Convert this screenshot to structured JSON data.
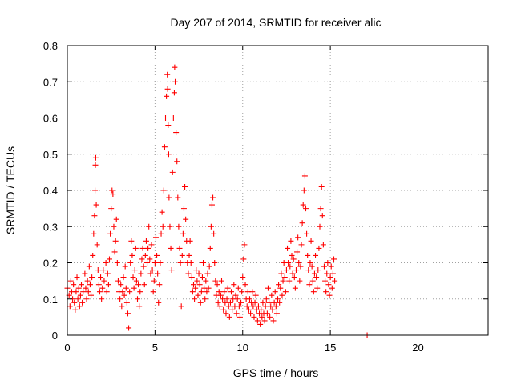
{
  "chart_data": {
    "type": "scatter",
    "title": "Day 207 of 2014, SRMTID for receiver alic",
    "xlabel": "GPS time / hours",
    "ylabel": "SRMTID / TECUs",
    "xlim": [
      0,
      24
    ],
    "ylim": [
      0,
      0.8
    ],
    "x_ticks": [
      0,
      5,
      10,
      15,
      20
    ],
    "y_ticks": [
      0,
      0.1,
      0.2,
      0.3,
      0.4,
      0.5,
      0.6,
      0.7,
      0.8
    ],
    "x_tick_labels": [
      "0",
      "5",
      "10",
      "15",
      "20"
    ],
    "y_tick_labels": [
      "0",
      "0.1",
      "0.2",
      "0.3",
      "0.4",
      "0.5",
      "0.6",
      "0.7",
      "0.8"
    ],
    "grid": true,
    "marker": "+",
    "color": "#ff0000",
    "series": [
      {
        "name": "SRMTID",
        "points": [
          [
            0.0,
            0.13
          ],
          [
            0.1,
            0.11
          ],
          [
            0.15,
            0.08
          ],
          [
            0.2,
            0.15
          ],
          [
            0.25,
            0.12
          ],
          [
            0.3,
            0.1
          ],
          [
            0.35,
            0.14
          ],
          [
            0.4,
            0.09
          ],
          [
            0.45,
            0.07
          ],
          [
            0.5,
            0.12
          ],
          [
            0.55,
            0.16
          ],
          [
            0.6,
            0.1
          ],
          [
            0.65,
            0.13
          ],
          [
            0.7,
            0.08
          ],
          [
            0.75,
            0.11
          ],
          [
            0.8,
            0.14
          ],
          [
            0.85,
            0.09
          ],
          [
            0.9,
            0.12
          ],
          [
            1.0,
            0.17
          ],
          [
            1.05,
            0.13
          ],
          [
            1.1,
            0.1
          ],
          [
            1.15,
            0.15
          ],
          [
            1.2,
            0.12
          ],
          [
            1.25,
            0.19
          ],
          [
            1.3,
            0.14
          ],
          [
            1.35,
            0.11
          ],
          [
            1.4,
            0.16
          ],
          [
            1.45,
            0.22
          ],
          [
            1.5,
            0.28
          ],
          [
            1.55,
            0.33
          ],
          [
            1.58,
            0.4
          ],
          [
            1.6,
            0.47
          ],
          [
            1.62,
            0.49
          ],
          [
            1.65,
            0.36
          ],
          [
            1.7,
            0.25
          ],
          [
            1.75,
            0.18
          ],
          [
            1.8,
            0.14
          ],
          [
            1.85,
            0.12
          ],
          [
            1.9,
            0.16
          ],
          [
            1.95,
            0.1
          ],
          [
            2.0,
            0.13
          ],
          [
            2.05,
            0.18
          ],
          [
            2.1,
            0.15
          ],
          [
            2.2,
            0.2
          ],
          [
            2.25,
            0.12
          ],
          [
            2.3,
            0.17
          ],
          [
            2.35,
            0.14
          ],
          [
            2.4,
            0.21
          ],
          [
            2.45,
            0.28
          ],
          [
            2.5,
            0.35
          ],
          [
            2.55,
            0.4
          ],
          [
            2.6,
            0.39
          ],
          [
            2.65,
            0.3
          ],
          [
            2.7,
            0.23
          ],
          [
            2.75,
            0.26
          ],
          [
            2.8,
            0.32
          ],
          [
            2.85,
            0.2
          ],
          [
            2.9,
            0.15
          ],
          [
            2.95,
            0.12
          ],
          [
            3.0,
            0.1
          ],
          [
            3.05,
            0.14
          ],
          [
            3.1,
            0.08
          ],
          [
            3.15,
            0.12
          ],
          [
            3.2,
            0.16
          ],
          [
            3.25,
            0.11
          ],
          [
            3.3,
            0.19
          ],
          [
            3.35,
            0.13
          ],
          [
            3.4,
            0.09
          ],
          [
            3.45,
            0.06
          ],
          [
            3.5,
            0.02
          ],
          [
            3.55,
            0.12
          ],
          [
            3.6,
            0.2
          ],
          [
            3.65,
            0.26
          ],
          [
            3.7,
            0.22
          ],
          [
            3.75,
            0.16
          ],
          [
            3.8,
            0.13
          ],
          [
            3.85,
            0.18
          ],
          [
            3.9,
            0.24
          ],
          [
            3.95,
            0.15
          ],
          [
            4.0,
            0.1
          ],
          [
            4.05,
            0.14
          ],
          [
            4.1,
            0.08
          ],
          [
            4.15,
            0.12
          ],
          [
            4.2,
            0.17
          ],
          [
            4.25,
            0.21
          ],
          [
            4.3,
            0.24
          ],
          [
            4.35,
            0.19
          ],
          [
            4.4,
            0.14
          ],
          [
            4.45,
            0.22
          ],
          [
            4.5,
            0.26
          ],
          [
            4.55,
            0.2
          ],
          [
            4.6,
            0.24
          ],
          [
            4.65,
            0.3
          ],
          [
            4.7,
            0.21
          ],
          [
            4.75,
            0.17
          ],
          [
            4.8,
            0.25
          ],
          [
            4.85,
            0.18
          ],
          [
            4.9,
            0.12
          ],
          [
            4.95,
            0.15
          ],
          [
            5.0,
            0.2
          ],
          [
            5.05,
            0.27
          ],
          [
            5.1,
            0.22
          ],
          [
            5.15,
            0.17
          ],
          [
            5.2,
            0.09
          ],
          [
            5.25,
            0.14
          ],
          [
            5.3,
            0.2
          ],
          [
            5.35,
            0.28
          ],
          [
            5.4,
            0.34
          ],
          [
            5.45,
            0.3
          ],
          [
            5.5,
            0.4
          ],
          [
            5.55,
            0.52
          ],
          [
            5.6,
            0.6
          ],
          [
            5.65,
            0.66
          ],
          [
            5.7,
            0.72
          ],
          [
            5.72,
            0.68
          ],
          [
            5.75,
            0.58
          ],
          [
            5.78,
            0.5
          ],
          [
            5.8,
            0.38
          ],
          [
            5.85,
            0.3
          ],
          [
            5.9,
            0.24
          ],
          [
            5.95,
            0.18
          ],
          [
            6.0,
            0.45
          ],
          [
            6.05,
            0.6
          ],
          [
            6.1,
            0.67
          ],
          [
            6.12,
            0.74
          ],
          [
            6.15,
            0.7
          ],
          [
            6.2,
            0.56
          ],
          [
            6.25,
            0.48
          ],
          [
            6.3,
            0.38
          ],
          [
            6.35,
            0.3
          ],
          [
            6.4,
            0.24
          ],
          [
            6.45,
            0.2
          ],
          [
            6.5,
            0.08
          ],
          [
            6.55,
            0.22
          ],
          [
            6.6,
            0.28
          ],
          [
            6.65,
            0.35
          ],
          [
            6.7,
            0.41
          ],
          [
            6.75,
            0.32
          ],
          [
            6.8,
            0.26
          ],
          [
            6.85,
            0.2
          ],
          [
            6.9,
            0.17
          ],
          [
            6.95,
            0.22
          ],
          [
            7.0,
            0.26
          ],
          [
            7.05,
            0.2
          ],
          [
            7.1,
            0.16
          ],
          [
            7.15,
            0.12
          ],
          [
            7.2,
            0.14
          ],
          [
            7.25,
            0.1
          ],
          [
            7.3,
            0.13
          ],
          [
            7.35,
            0.18
          ],
          [
            7.4,
            0.15
          ],
          [
            7.45,
            0.11
          ],
          [
            7.5,
            0.17
          ],
          [
            7.55,
            0.14
          ],
          [
            7.6,
            0.09
          ],
          [
            7.65,
            0.12
          ],
          [
            7.7,
            0.16
          ],
          [
            7.75,
            0.2
          ],
          [
            7.8,
            0.13
          ],
          [
            7.85,
            0.1
          ],
          [
            7.9,
            0.15
          ],
          [
            7.95,
            0.12
          ],
          [
            8.0,
            0.17
          ],
          [
            8.05,
            0.13
          ],
          [
            8.1,
            0.19
          ],
          [
            8.15,
            0.24
          ],
          [
            8.2,
            0.3
          ],
          [
            8.25,
            0.36
          ],
          [
            8.3,
            0.38
          ],
          [
            8.35,
            0.28
          ],
          [
            8.4,
            0.2
          ],
          [
            8.45,
            0.15
          ],
          [
            8.5,
            0.11
          ],
          [
            8.55,
            0.14
          ],
          [
            8.6,
            0.09
          ],
          [
            8.65,
            0.12
          ],
          [
            8.7,
            0.08
          ],
          [
            8.75,
            0.11
          ],
          [
            8.8,
            0.15
          ],
          [
            8.85,
            0.1
          ],
          [
            8.9,
            0.07
          ],
          [
            8.95,
            0.12
          ],
          [
            9.0,
            0.09
          ],
          [
            9.05,
            0.06
          ],
          [
            9.1,
            0.1
          ],
          [
            9.15,
            0.13
          ],
          [
            9.2,
            0.08
          ],
          [
            9.25,
            0.05
          ],
          [
            9.3,
            0.09
          ],
          [
            9.35,
            0.12
          ],
          [
            9.4,
            0.07
          ],
          [
            9.45,
            0.1
          ],
          [
            9.5,
            0.14
          ],
          [
            9.55,
            0.08
          ],
          [
            9.6,
            0.11
          ],
          [
            9.65,
            0.06
          ],
          [
            9.7,
            0.1
          ],
          [
            9.75,
            0.13
          ],
          [
            9.8,
            0.08
          ],
          [
            9.85,
            0.05
          ],
          [
            9.9,
            0.09
          ],
          [
            9.95,
            0.12
          ],
          [
            10.0,
            0.16
          ],
          [
            10.05,
            0.21
          ],
          [
            10.1,
            0.25
          ],
          [
            10.15,
            0.14
          ],
          [
            10.2,
            0.1
          ],
          [
            10.25,
            0.08
          ],
          [
            10.3,
            0.12
          ],
          [
            10.35,
            0.07
          ],
          [
            10.4,
            0.1
          ],
          [
            10.45,
            0.06
          ],
          [
            10.5,
            0.09
          ],
          [
            10.55,
            0.12
          ],
          [
            10.6,
            0.08
          ],
          [
            10.65,
            0.05
          ],
          [
            10.7,
            0.09
          ],
          [
            10.75,
            0.11
          ],
          [
            10.8,
            0.07
          ],
          [
            10.85,
            0.04
          ],
          [
            10.9,
            0.08
          ],
          [
            10.95,
            0.06
          ],
          [
            11.0,
            0.03
          ],
          [
            11.05,
            0.07
          ],
          [
            11.1,
            0.05
          ],
          [
            11.15,
            0.09
          ],
          [
            11.2,
            0.06
          ],
          [
            11.25,
            0.04
          ],
          [
            11.3,
            0.08
          ],
          [
            11.35,
            0.1
          ],
          [
            11.4,
            0.06
          ],
          [
            11.45,
            0.13
          ],
          [
            11.5,
            0.09
          ],
          [
            11.55,
            0.05
          ],
          [
            11.6,
            0.08
          ],
          [
            11.65,
            0.11
          ],
          [
            11.7,
            0.07
          ],
          [
            11.75,
            0.04
          ],
          [
            11.8,
            0.09
          ],
          [
            11.85,
            0.12
          ],
          [
            11.9,
            0.08
          ],
          [
            11.95,
            0.06
          ],
          [
            12.0,
            0.1
          ],
          [
            12.05,
            0.14
          ],
          [
            12.1,
            0.09
          ],
          [
            12.15,
            0.13
          ],
          [
            12.2,
            0.17
          ],
          [
            12.25,
            0.11
          ],
          [
            12.3,
            0.15
          ],
          [
            12.35,
            0.2
          ],
          [
            12.4,
            0.16
          ],
          [
            12.45,
            0.12
          ],
          [
            12.5,
            0.18
          ],
          [
            12.55,
            0.24
          ],
          [
            12.6,
            0.2
          ],
          [
            12.65,
            0.15
          ],
          [
            12.7,
            0.19
          ],
          [
            12.75,
            0.26
          ],
          [
            12.8,
            0.22
          ],
          [
            12.85,
            0.17
          ],
          [
            12.9,
            0.21
          ],
          [
            12.95,
            0.16
          ],
          [
            13.0,
            0.13
          ],
          [
            13.05,
            0.18
          ],
          [
            13.1,
            0.23
          ],
          [
            13.15,
            0.27
          ],
          [
            13.2,
            0.2
          ],
          [
            13.25,
            0.15
          ],
          [
            13.3,
            0.19
          ],
          [
            13.35,
            0.25
          ],
          [
            13.4,
            0.31
          ],
          [
            13.45,
            0.36
          ],
          [
            13.5,
            0.4
          ],
          [
            13.55,
            0.44
          ],
          [
            13.6,
            0.35
          ],
          [
            13.65,
            0.28
          ],
          [
            13.7,
            0.22
          ],
          [
            13.75,
            0.18
          ],
          [
            13.8,
            0.14
          ],
          [
            13.85,
            0.2
          ],
          [
            13.9,
            0.26
          ],
          [
            13.95,
            0.19
          ],
          [
            14.0,
            0.15
          ],
          [
            14.05,
            0.12
          ],
          [
            14.1,
            0.17
          ],
          [
            14.15,
            0.22
          ],
          [
            14.2,
            0.16
          ],
          [
            14.25,
            0.13
          ],
          [
            14.3,
            0.18
          ],
          [
            14.35,
            0.24
          ],
          [
            14.4,
            0.3
          ],
          [
            14.45,
            0.35
          ],
          [
            14.5,
            0.41
          ],
          [
            14.55,
            0.33
          ],
          [
            14.6,
            0.25
          ],
          [
            14.65,
            0.19
          ],
          [
            14.7,
            0.15
          ],
          [
            14.75,
            0.12
          ],
          [
            14.8,
            0.17
          ],
          [
            14.85,
            0.2
          ],
          [
            14.9,
            0.14
          ],
          [
            14.95,
            0.11
          ],
          [
            15.0,
            0.16
          ],
          [
            15.05,
            0.19
          ],
          [
            15.1,
            0.13
          ],
          [
            15.15,
            0.17
          ],
          [
            15.2,
            0.21
          ],
          [
            15.25,
            0.15
          ],
          [
            17.1,
            0.0
          ]
        ]
      }
    ]
  }
}
